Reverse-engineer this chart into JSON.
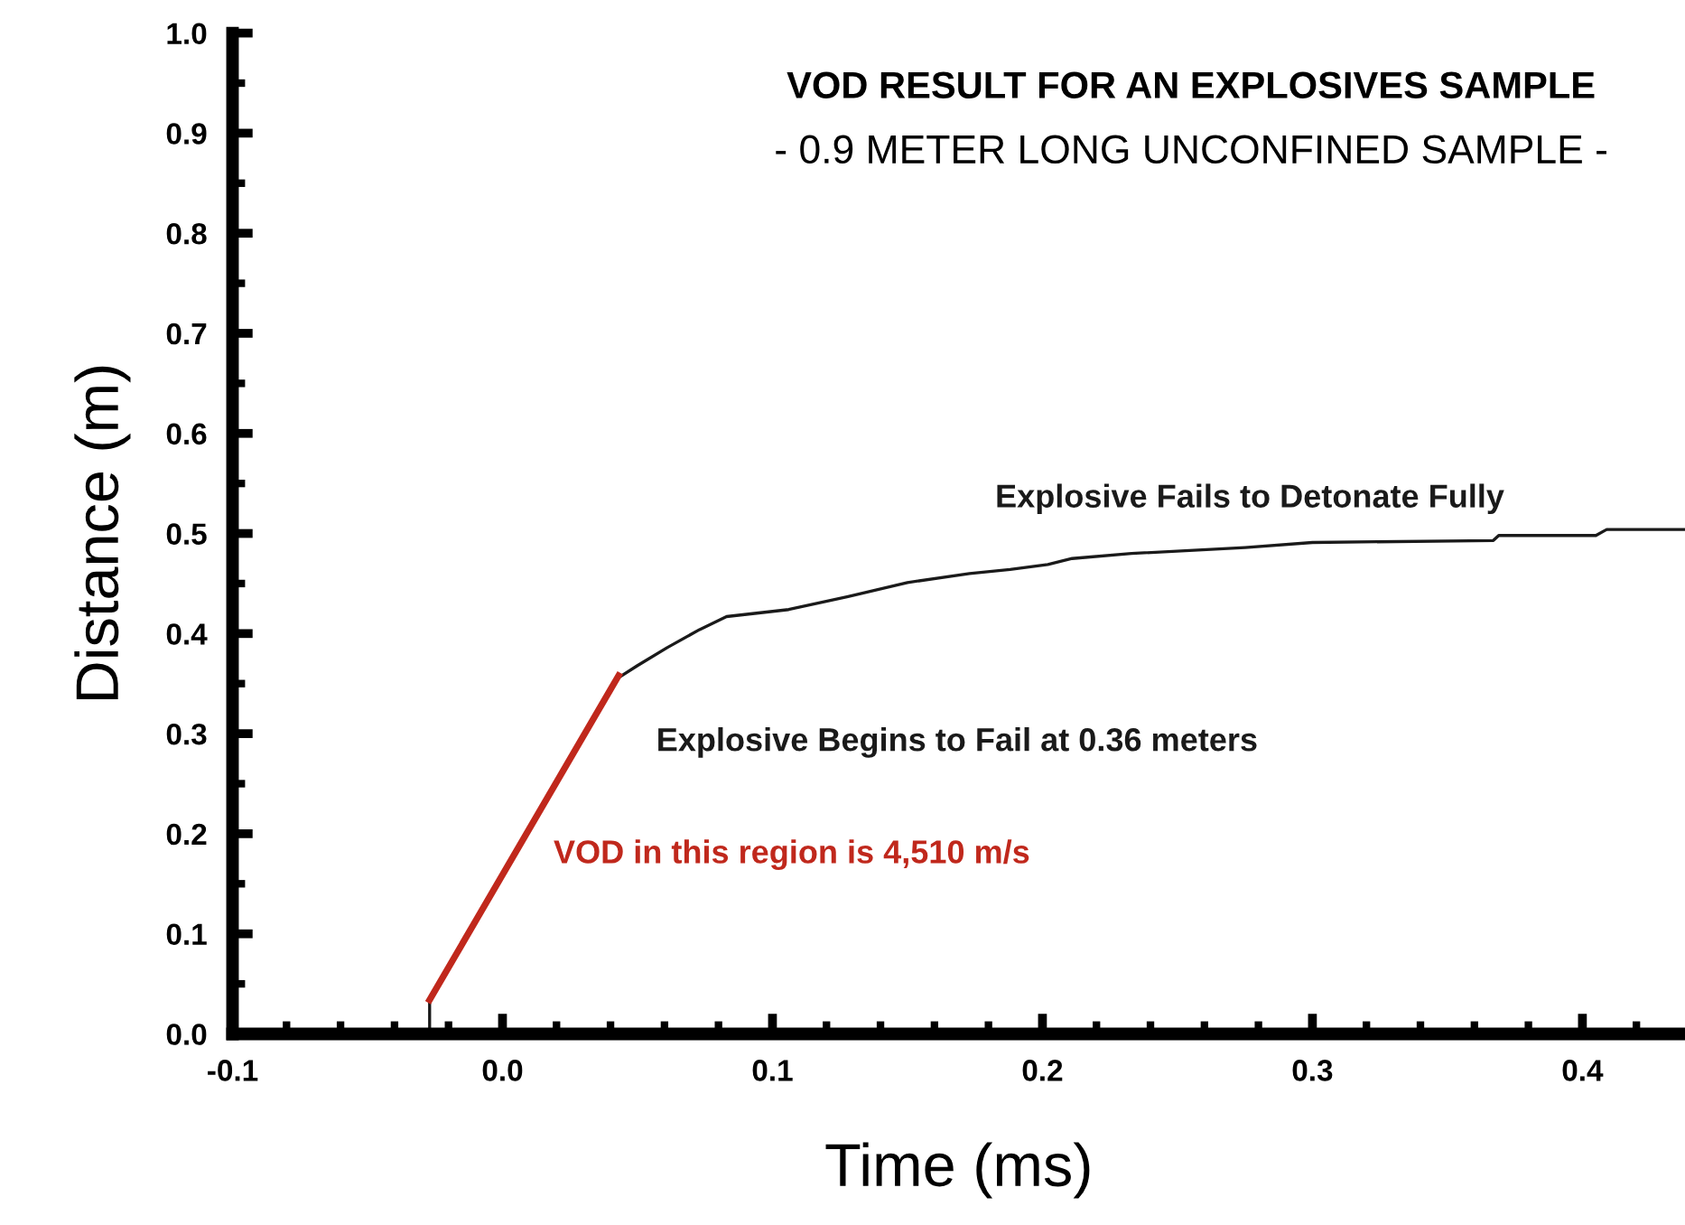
{
  "chart_data": {
    "type": "line",
    "title": "VOD RESULT FOR AN EXPLOSIVES SAMPLE",
    "subtitle": "- 0.9 METER LONG UNCONFINED SAMPLE -",
    "xlabel": "Time (ms)",
    "ylabel": "Distance (m)",
    "series": [
      {
        "color": "#1a1a1a",
        "x": [
          -0.027,
          -0.027,
          0.043,
          0.05,
          0.061,
          0.073,
          0.083,
          0.106,
          0.128,
          0.15,
          0.173,
          0.188,
          0.202,
          0.211,
          0.233,
          0.275,
          0.3,
          0.367,
          0.369,
          0.405,
          0.409,
          0.438
        ],
        "values": [
          0.0,
          0.034,
          0.356,
          0.368,
          0.386,
          0.404,
          0.417,
          0.424,
          0.437,
          0.451,
          0.46,
          0.464,
          0.469,
          0.475,
          0.48,
          0.486,
          0.491,
          0.493,
          0.498,
          0.498,
          0.504,
          0.504
        ]
      },
      {
        "color": "#c0281c",
        "x": [
          -0.027,
          0.043
        ],
        "values": [
          0.034,
          0.358
        ]
      }
    ],
    "annotations": [
      {
        "text": "Explosive Fails to Detonate Fully",
        "x": 0.3,
        "y": 0.491
      },
      {
        "text": "Explosive Begins to Fail at 0.36 meters",
        "x": 0.043,
        "y": 0.358
      },
      "VOD in this region is 4,510 m/s"
    ],
    "xlim": [
      -0.1,
      0.438
    ],
    "ylim": [
      0.0,
      1.0
    ],
    "xticks": [
      -0.1,
      {
        "value": 0.0,
        "label": "0.0"
      },
      0.1,
      0.2,
      0.3,
      0.4
    ],
    "yticks": [
      {
        "value": 0.0,
        "label": "0.0"
      },
      0.1,
      0.2,
      0.3,
      0.4,
      0.5,
      0.6,
      0.7,
      0.8,
      0.9,
      {
        "value": 1.0,
        "label": "1.0"
      }
    ],
    "grid": false,
    "legend": false,
    "marker": "none",
    "line_style": "solid"
  }
}
